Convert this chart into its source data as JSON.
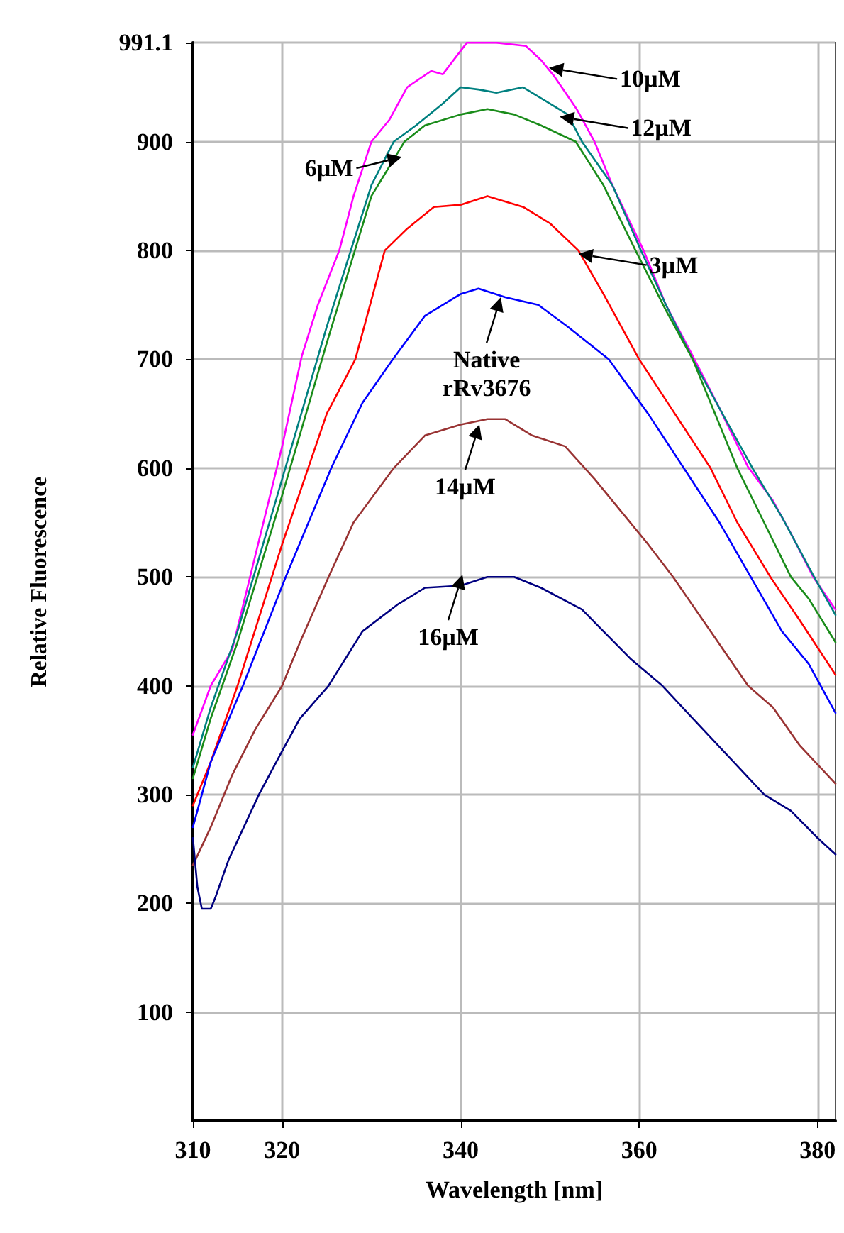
{
  "chart_data": {
    "type": "line",
    "xlabel": "Wavelength [nm]",
    "ylabel": "Relative Fluorescence",
    "xlim": [
      310,
      382
    ],
    "xticks": [
      310,
      320,
      340,
      360,
      380
    ],
    "ylim": [
      0,
      991.1
    ],
    "yticks": [
      100,
      200,
      300,
      400,
      500,
      600,
      700,
      800,
      900,
      991.1
    ],
    "grid": true,
    "marker": "none",
    "line_style": "solid",
    "series": [
      {
        "color": "#ff00ff",
        "x": [
          310,
          312,
          314.4,
          317,
          320,
          322.2,
          324,
          326.4,
          328,
          330,
          332,
          334,
          336.7,
          338,
          340.7,
          344,
          347.3,
          349,
          350.5,
          353,
          355,
          357,
          360.5,
          363,
          366.2,
          369,
          372.2,
          375,
          377,
          379.5,
          382
        ],
        "values": [
          355,
          400,
          433,
          520,
          620,
          703,
          750,
          800,
          850,
          900,
          920,
          950,
          965,
          962,
          991,
          991,
          988,
          975,
          960,
          930,
          900,
          860,
          800,
          750,
          700,
          655,
          601,
          570,
          540,
          500,
          470
        ]
      },
      {
        "color": "#008080",
        "x": [
          310,
          312,
          315,
          320,
          325,
          330,
          332.5,
          335,
          338,
          340,
          342,
          344,
          347,
          349,
          352,
          353.6,
          357,
          360.2,
          363,
          366,
          369,
          372.7,
          376,
          379.6,
          382
        ],
        "values": [
          325,
          380,
          450,
          590,
          730,
          860,
          900,
          915,
          935,
          950,
          948,
          945,
          950,
          940,
          925,
          900,
          860,
          800,
          750,
          700,
          655,
          600,
          555,
          500,
          465
        ]
      },
      {
        "color": "#1a8c1a",
        "x": [
          310,
          312,
          315,
          320,
          325,
          330,
          333.7,
          336,
          340,
          343,
          346,
          349,
          352.9,
          356,
          359.6,
          363,
          366,
          368,
          371,
          374,
          377,
          379,
          382
        ],
        "values": [
          315,
          370,
          440,
          575,
          715,
          850,
          900,
          915,
          925,
          930,
          925,
          915,
          900,
          860,
          800,
          745,
          700,
          660,
          600,
          550,
          500,
          480,
          440
        ]
      },
      {
        "color": "#ff0000",
        "x": [
          310,
          312,
          315,
          320,
          325,
          328.2,
          331.5,
          334,
          337,
          340,
          343,
          347,
          350,
          353.2,
          356,
          360,
          364,
          368,
          371,
          374.7,
          378,
          382
        ],
        "values": [
          290,
          330,
          400,
          530,
          650,
          700,
          800,
          820,
          840,
          842,
          850,
          840,
          825,
          800,
          760,
          700,
          650,
          600,
          550,
          500,
          460,
          410
        ]
      },
      {
        "color": "#0000ff",
        "x": [
          310,
          312,
          315.6,
          320.4,
          325.5,
          329,
          332.4,
          336,
          340,
          342,
          345,
          348.7,
          352,
          356.6,
          361,
          365,
          369,
          372.5,
          376,
          379,
          382
        ],
        "values": [
          270,
          330,
          400,
          500,
          600,
          660,
          700,
          740,
          760,
          765,
          757,
          750,
          730,
          700,
          650,
          600,
          550,
          500,
          450,
          420,
          375
        ]
      },
      {
        "color": "#993333",
        "x": [
          310,
          312,
          314.4,
          317,
          320,
          322,
          325.2,
          328,
          332.5,
          336,
          340,
          343,
          345,
          348,
          351.7,
          355,
          358,
          361,
          363.8,
          368,
          372.2,
          375,
          378,
          382
        ],
        "values": [
          235,
          270,
          318,
          360,
          400,
          440,
          500,
          550,
          600,
          630,
          640,
          645,
          645,
          630,
          620,
          590,
          560,
          530,
          500,
          450,
          400,
          380,
          345,
          310
        ]
      },
      {
        "color": "#000080",
        "x": [
          310,
          310.5,
          311,
          312,
          312.5,
          314,
          317.4,
          320,
          322,
          325.2,
          329,
          333,
          336,
          340,
          343,
          346,
          349,
          353.6,
          356,
          359,
          362.6,
          366,
          370,
          374,
          377,
          380,
          382
        ],
        "values": [
          260,
          215,
          195,
          195,
          205,
          240,
          300,
          340,
          370,
          400,
          450,
          475,
          490,
          492,
          500,
          500,
          490,
          470,
          450,
          425,
          400,
          370,
          335,
          300,
          285,
          260,
          245
        ]
      }
    ],
    "annotations": [
      {
        "text": "10µM",
        "x": 349.9,
        "y": 968
      },
      {
        "text": "12µM",
        "x": 351.1,
        "y": 923
      },
      {
        "text": "6µM",
        "x": 333.4,
        "y": 886
      },
      {
        "text": "3µM",
        "x": 353.2,
        "y": 797
      },
      {
        "text": "Native\nrRv3676",
        "x": 344.5,
        "y": 757
      },
      {
        "text": "14µM",
        "x": 342.1,
        "y": 640
      },
      {
        "text": "16µM",
        "x": 340.2,
        "y": 502
      }
    ]
  }
}
